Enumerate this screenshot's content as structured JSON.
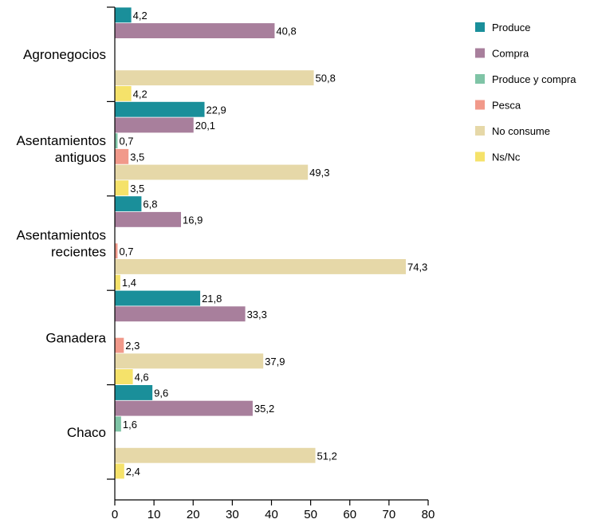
{
  "chart_data": {
    "type": "bar",
    "orientation": "horizontal",
    "categories": [
      {
        "lines": [
          "Agronegocios"
        ]
      },
      {
        "lines": [
          "Asentamientos",
          "antiguos"
        ]
      },
      {
        "lines": [
          "Asentamientos",
          "recientes"
        ]
      },
      {
        "lines": [
          "Ganadera"
        ]
      },
      {
        "lines": [
          "Chaco"
        ]
      }
    ],
    "series": [
      {
        "name": "Produce",
        "color": "#1a8f9a",
        "values": [
          4.2,
          22.9,
          6.8,
          21.8,
          9.6
        ],
        "labels": [
          "4,2",
          "22,9",
          "6,8",
          "21,8",
          "9,6"
        ]
      },
      {
        "name": "Compra",
        "color": "#a87f9c",
        "values": [
          40.8,
          20.1,
          16.9,
          33.3,
          35.2
        ],
        "labels": [
          "40,8",
          "20,1",
          "16,9",
          "33,3",
          "35,2"
        ]
      },
      {
        "name": "Produce y compra",
        "color": "#7fc4a6",
        "values": [
          null,
          0.7,
          null,
          null,
          1.6
        ],
        "labels": [
          null,
          "0,7",
          null,
          null,
          "1,6"
        ]
      },
      {
        "name": "Pesca",
        "color": "#f1998a",
        "values": [
          null,
          3.5,
          0.7,
          2.3,
          null
        ],
        "labels": [
          null,
          "3,5",
          "0,7",
          "2,3",
          null
        ]
      },
      {
        "name": "No consume",
        "color": "#e6d8a8",
        "values": [
          50.8,
          49.3,
          74.3,
          37.9,
          51.2
        ],
        "labels": [
          "50,8",
          "49,3",
          "74,3",
          "37,9",
          "51,2"
        ]
      },
      {
        "name": "Ns/Nc",
        "color": "#f5e26a",
        "values": [
          4.2,
          3.5,
          1.4,
          4.6,
          2.4
        ],
        "labels": [
          "4,2",
          "3,5",
          "1,4",
          "4,6",
          "2,4"
        ]
      }
    ],
    "xlim": [
      0,
      80
    ],
    "xticks": [
      "0",
      "10",
      "20",
      "30",
      "40",
      "50",
      "60",
      "70",
      "80"
    ],
    "grid": false,
    "legend": "top-right"
  }
}
